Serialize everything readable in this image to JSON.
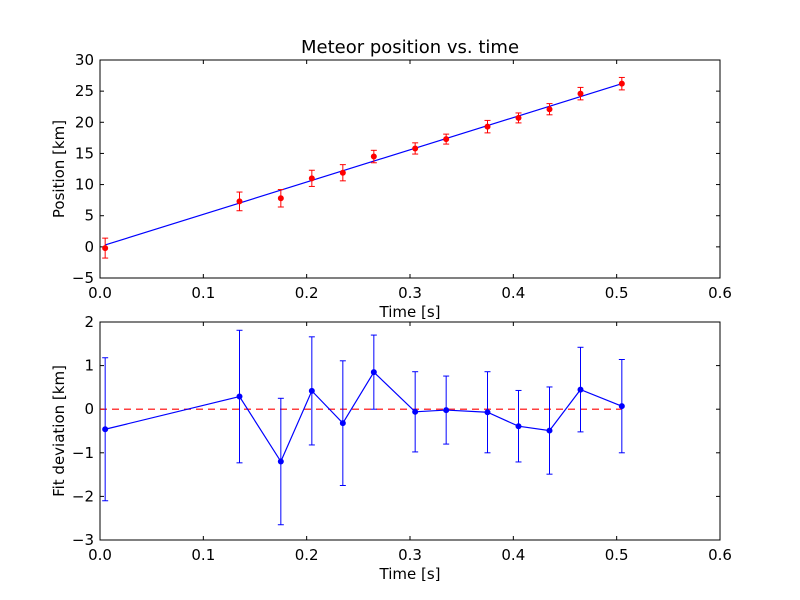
{
  "chart_data": [
    {
      "type": "scatter",
      "title": "Meteor position vs. time",
      "xlabel": "Time [s]",
      "ylabel": "Position [km]",
      "xlim": [
        0.0,
        0.6
      ],
      "ylim": [
        -5,
        30
      ],
      "xticks": [
        "0.0",
        "0.1",
        "0.2",
        "0.3",
        "0.4",
        "0.5",
        "0.6"
      ],
      "yticks": [
        "−5",
        "0",
        "5",
        "10",
        "15",
        "20",
        "25",
        "30"
      ],
      "grid": false,
      "points": {
        "x": [
          0.005,
          0.135,
          0.175,
          0.205,
          0.235,
          0.265,
          0.305,
          0.335,
          0.375,
          0.405,
          0.435,
          0.465,
          0.505
        ],
        "y": [
          -0.2,
          7.3,
          7.8,
          11.0,
          11.9,
          14.5,
          15.8,
          17.3,
          19.3,
          20.7,
          22.1,
          24.6,
          26.2
        ],
        "yerr": [
          1.6,
          1.5,
          1.4,
          1.3,
          1.3,
          1.0,
          0.9,
          0.8,
          1.0,
          0.8,
          0.9,
          1.0,
          1.0
        ],
        "color": "#ff0000"
      },
      "fit_line": {
        "x": [
          0.005,
          0.505
        ],
        "y": [
          0.3,
          26.2
        ],
        "color": "#0000ff"
      }
    },
    {
      "type": "line",
      "xlabel": "Time [s]",
      "ylabel": "Fit deviation [km]",
      "xlim": [
        0.0,
        0.6
      ],
      "ylim": [
        -3,
        2
      ],
      "xticks": [
        "0.0",
        "0.1",
        "0.2",
        "0.3",
        "0.4",
        "0.5",
        "0.6"
      ],
      "yticks": [
        "−3",
        "−2",
        "−1",
        "0",
        "1",
        "2"
      ],
      "grid": false,
      "series": [
        {
          "x": [
            0.005,
            0.135,
            0.175,
            0.205,
            0.235,
            0.265,
            0.305,
            0.335,
            0.375,
            0.405,
            0.435,
            0.465,
            0.505
          ],
          "y": [
            -0.46,
            0.29,
            -1.2,
            0.42,
            -0.32,
            0.85,
            -0.06,
            -0.02,
            -0.07,
            -0.39,
            -0.49,
            0.45,
            0.07
          ],
          "yerr": [
            1.64,
            1.52,
            1.45,
            1.24,
            1.43,
            0.85,
            0.92,
            0.78,
            0.93,
            0.82,
            1.0,
            0.97,
            1.07
          ],
          "color": "#0000ff"
        }
      ],
      "reference_line": {
        "y": 0,
        "x": [
          0.0,
          0.505
        ],
        "style": "dashed",
        "color": "#ff0000"
      }
    }
  ]
}
